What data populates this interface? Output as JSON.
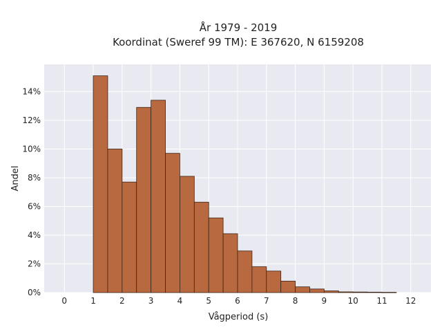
{
  "chart_data": {
    "type": "bar",
    "title": "År 1979 - 2019",
    "subtitle": "Koordinat (Sweref 99 TM): E 367620, N 6159208",
    "xlabel": "Vågperiod (s)",
    "ylabel": "Andel",
    "x_ticks": [
      0,
      1,
      2,
      3,
      4,
      5,
      6,
      7,
      8,
      9,
      10,
      11,
      12
    ],
    "y_ticks": [
      0,
      2,
      4,
      6,
      8,
      10,
      12,
      14
    ],
    "y_tick_suffix": "%",
    "xlim": [
      -0.7,
      12.7
    ],
    "ylim": [
      0,
      15.9
    ],
    "bin_width": 0.5,
    "bins": [
      {
        "start": 1.0,
        "value": 15.1
      },
      {
        "start": 1.5,
        "value": 10.0
      },
      {
        "start": 2.0,
        "value": 7.7
      },
      {
        "start": 2.5,
        "value": 12.9
      },
      {
        "start": 3.0,
        "value": 13.4
      },
      {
        "start": 3.5,
        "value": 9.7
      },
      {
        "start": 4.0,
        "value": 8.1
      },
      {
        "start": 4.5,
        "value": 6.3
      },
      {
        "start": 5.0,
        "value": 5.2
      },
      {
        "start": 5.5,
        "value": 4.1
      },
      {
        "start": 6.0,
        "value": 2.9
      },
      {
        "start": 6.5,
        "value": 1.8
      },
      {
        "start": 7.0,
        "value": 1.5
      },
      {
        "start": 7.5,
        "value": 0.8
      },
      {
        "start": 8.0,
        "value": 0.4
      },
      {
        "start": 8.5,
        "value": 0.25
      },
      {
        "start": 9.0,
        "value": 0.12
      },
      {
        "start": 9.5,
        "value": 0.05
      },
      {
        "start": 10.0,
        "value": 0.04
      },
      {
        "start": 10.5,
        "value": 0.03
      },
      {
        "start": 11.0,
        "value": 0.02
      }
    ],
    "grid": true,
    "colors": {
      "bar_fill": "#b9693f",
      "bar_stroke": "#3b2416",
      "plot_background": "#e9e9f1",
      "grid": "#ffffff",
      "text": "#222222"
    }
  }
}
